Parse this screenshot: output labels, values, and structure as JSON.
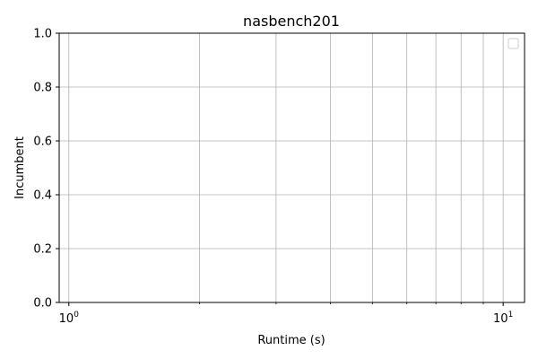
{
  "chart_data": {
    "type": "line",
    "title": "nasbench201",
    "xlabel": "Runtime (s)",
    "ylabel": "Incumbent",
    "x_scale": "log",
    "xlim": [
      0.95,
      11.2
    ],
    "ylim": [
      0,
      1
    ],
    "x_major_ticks": [
      {
        "value": 1,
        "base": "10",
        "exp": "0"
      },
      {
        "value": 10,
        "base": "10",
        "exp": "1"
      }
    ],
    "x_minor_ticks": [
      2,
      3,
      4,
      5,
      6,
      7,
      8,
      9
    ],
    "y_ticks": [
      {
        "value": 0.0,
        "label": "0.0"
      },
      {
        "value": 0.2,
        "label": "0.2"
      },
      {
        "value": 0.4,
        "label": "0.4"
      },
      {
        "value": 0.6,
        "label": "0.6"
      },
      {
        "value": 0.8,
        "label": "0.8"
      },
      {
        "value": 1.0,
        "label": "1.0"
      }
    ],
    "grid": true,
    "legend": {
      "placement": "top-right",
      "entries": []
    },
    "series": []
  }
}
